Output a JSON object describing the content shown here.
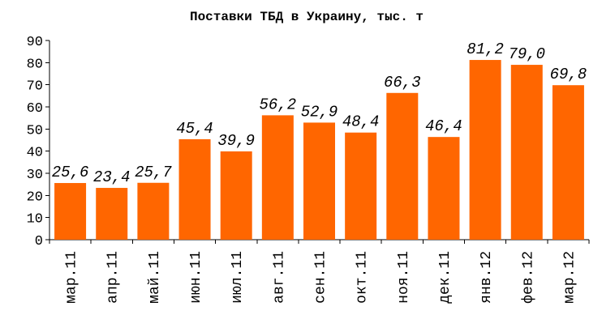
{
  "chart_data": {
    "type": "bar",
    "title": "Поставки ТБД в Украину, тыс. т",
    "xlabel": "",
    "ylabel": "",
    "categories": [
      "мар.11",
      "апр.11",
      "май.11",
      "июн.11",
      "июл.11",
      "авг.11",
      "сен.11",
      "окт.11",
      "ноя.11",
      "дек.11",
      "янв.12",
      "фев.12",
      "мар.12"
    ],
    "values": [
      25.6,
      23.4,
      25.7,
      45.4,
      39.9,
      56.2,
      52.9,
      48.4,
      66.3,
      46.4,
      81.2,
      79.0,
      69.8
    ],
    "data_labels": [
      "25,6",
      "23,4",
      "25,7",
      "45,4",
      "39,9",
      "56,2",
      "52,9",
      "48,4",
      "66,3",
      "46,4",
      "81,2",
      "79,0",
      "69,8"
    ],
    "ylim": [
      0,
      90
    ],
    "yticks": [
      0,
      10,
      20,
      30,
      40,
      50,
      60,
      70,
      80,
      90
    ],
    "grid": false,
    "legend": "none",
    "bar_color": "#ff6600"
  }
}
